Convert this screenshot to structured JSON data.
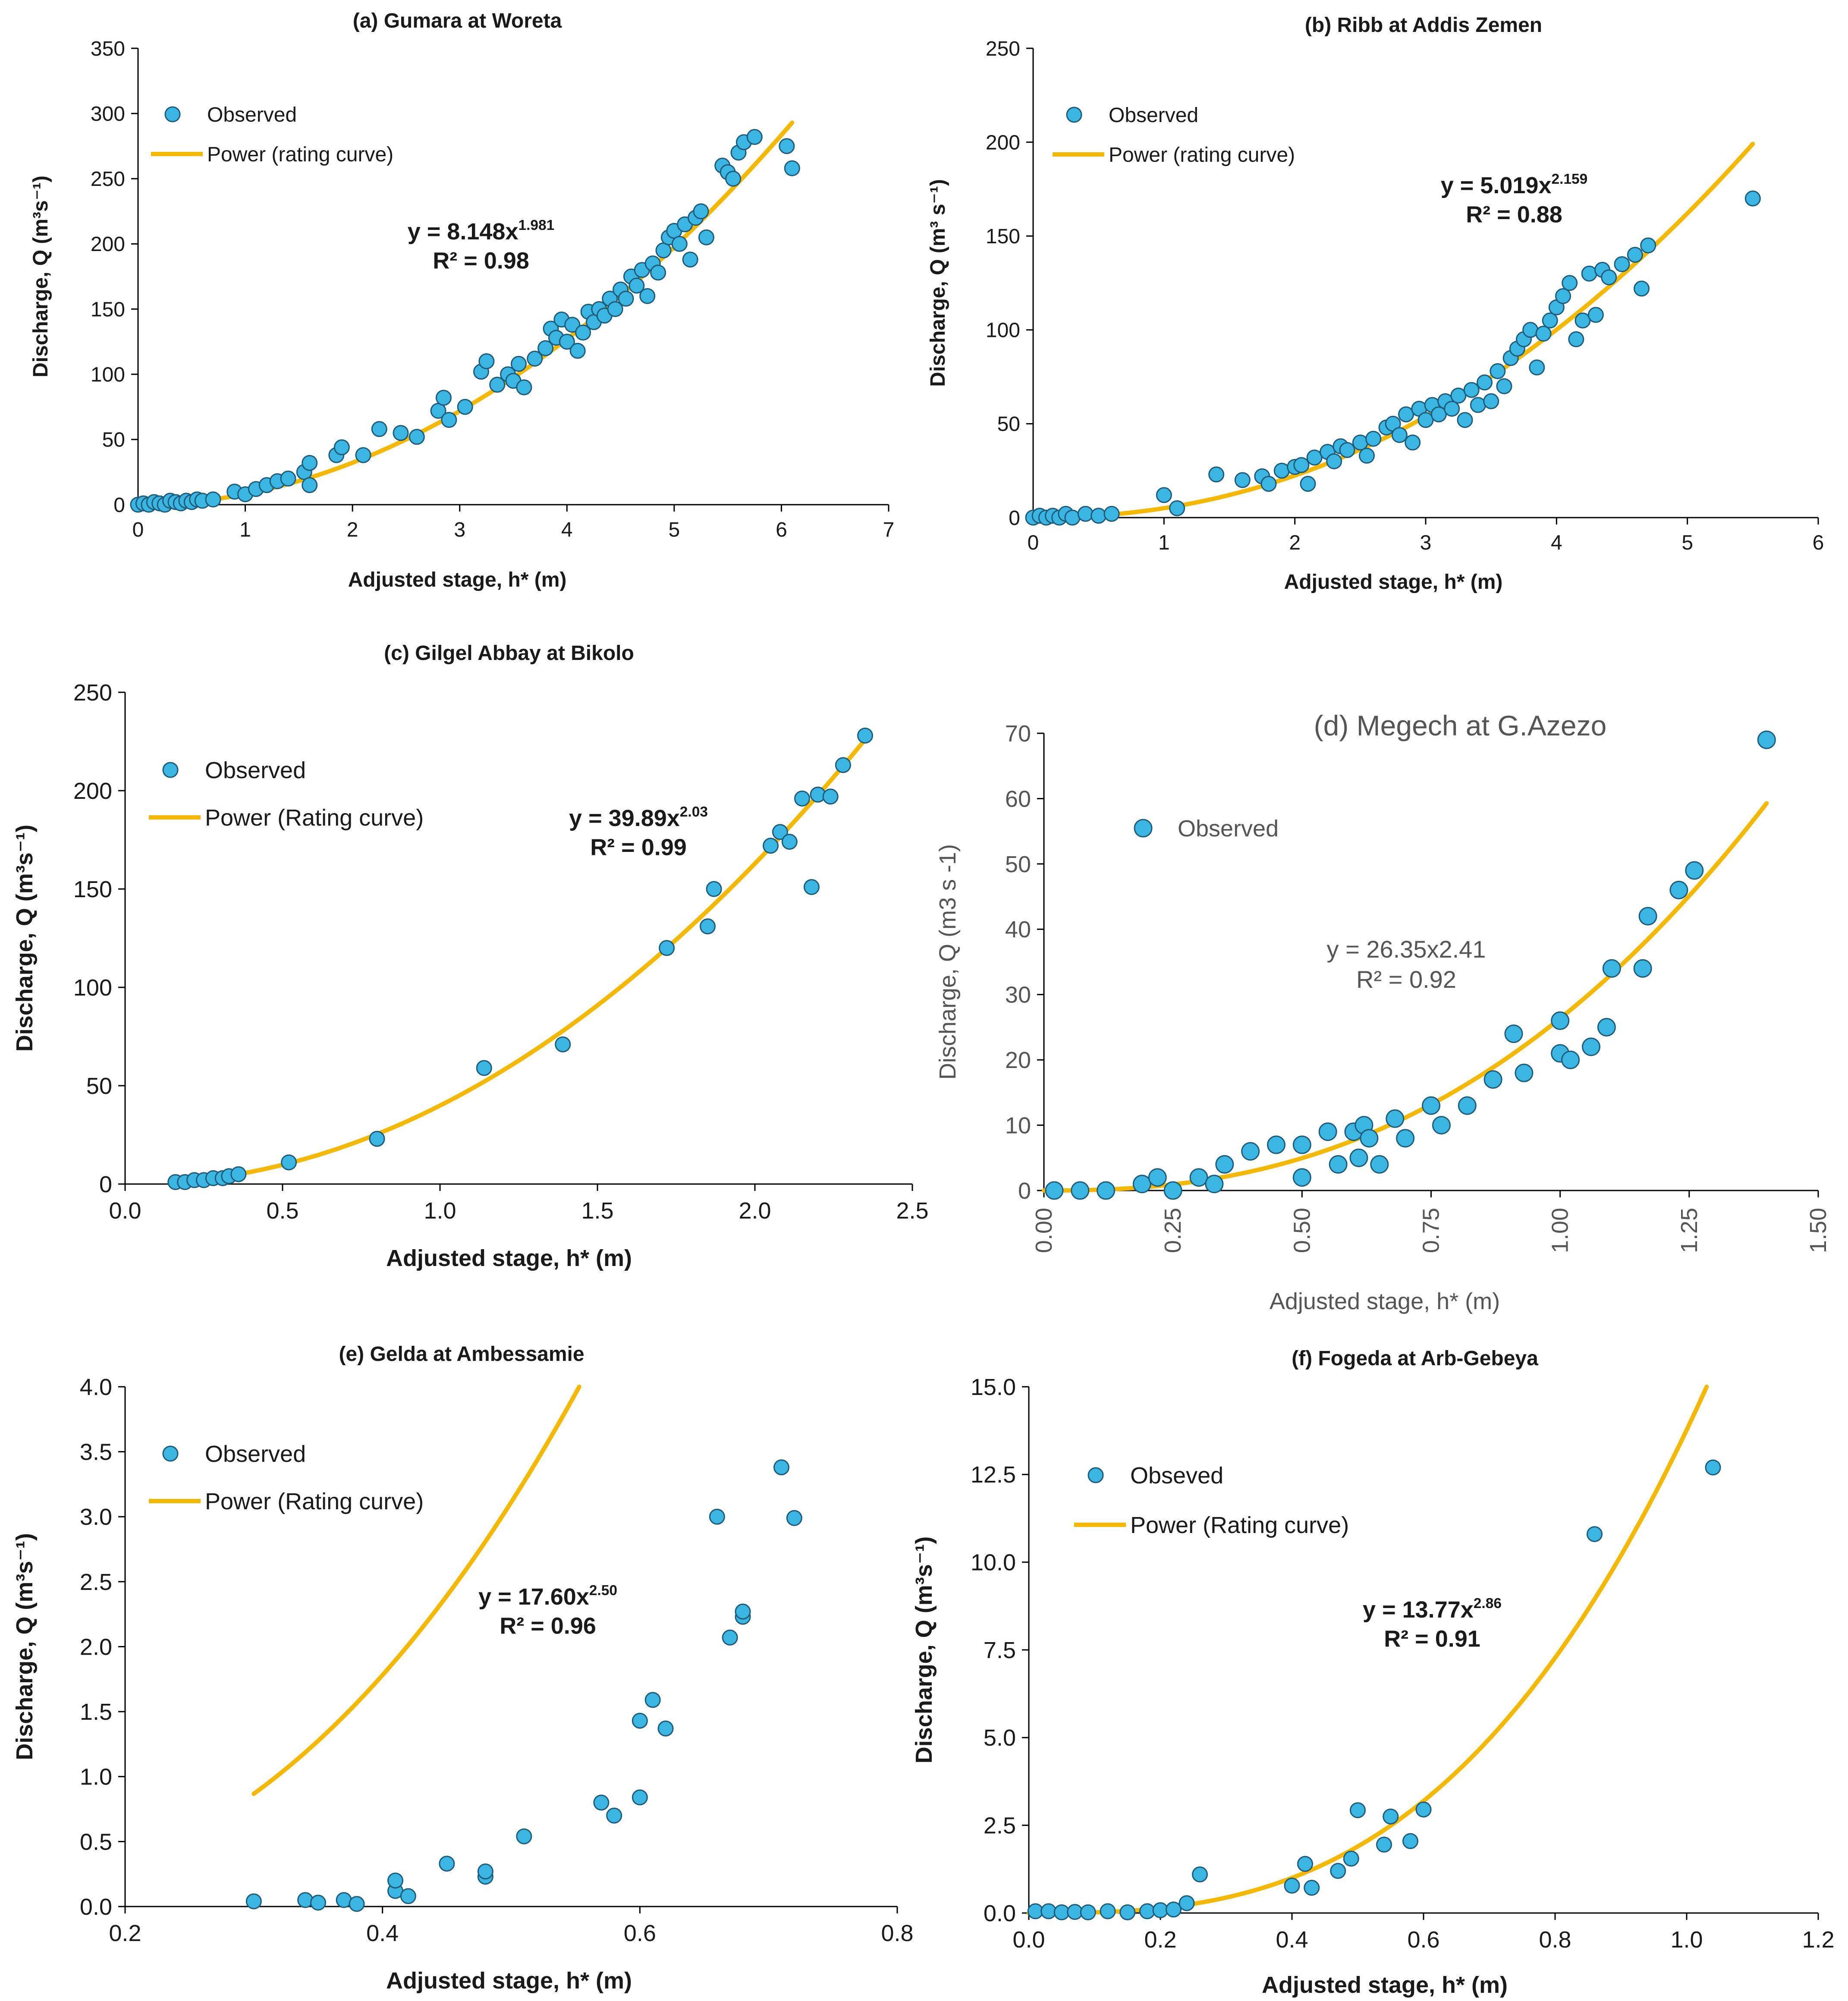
{
  "colors": {
    "observed_fill": "#3bb6e2",
    "observed_stroke": "#1d5b78",
    "curve": "#f5b800",
    "axis": "#000000"
  },
  "chart_data": [
    {
      "id": "a",
      "type": "scatter",
      "title": "(a) Gumara at Woreta",
      "xlabel": "Adjusted stage, h* (m)",
      "ylabel": "Discharge, Q (m³s⁻¹)",
      "xlim": [
        0,
        7
      ],
      "ylim": [
        0,
        350
      ],
      "xticks": [
        "0",
        "1",
        "2",
        "3",
        "4",
        "5",
        "6",
        "7"
      ],
      "yticks": [
        "0",
        "50",
        "100",
        "150",
        "200",
        "250",
        "300",
        "350"
      ],
      "legend": [
        "Observed",
        "Power (rating curve)"
      ],
      "equation": {
        "prefix": "y = 8.148x",
        "exp": "1.981",
        "r2": "R² = 0.98"
      },
      "fit": {
        "a": 8.148,
        "b": 1.981,
        "xmax": 6.1
      },
      "points": [
        [
          0,
          0
        ],
        [
          0.05,
          1
        ],
        [
          0.1,
          0
        ],
        [
          0.15,
          2
        ],
        [
          0.2,
          1
        ],
        [
          0.25,
          0
        ],
        [
          0.3,
          3
        ],
        [
          0.35,
          2
        ],
        [
          0.4,
          1
        ],
        [
          0.45,
          3
        ],
        [
          0.5,
          2
        ],
        [
          0.55,
          4
        ],
        [
          0.6,
          3
        ],
        [
          0.7,
          4
        ],
        [
          0.9,
          10
        ],
        [
          1.0,
          8
        ],
        [
          1.1,
          12
        ],
        [
          1.2,
          15
        ],
        [
          1.3,
          18
        ],
        [
          1.4,
          20
        ],
        [
          1.55,
          25
        ],
        [
          1.6,
          32
        ],
        [
          1.6,
          15
        ],
        [
          1.85,
          38
        ],
        [
          1.9,
          44
        ],
        [
          2.1,
          38
        ],
        [
          2.25,
          58
        ],
        [
          2.45,
          55
        ],
        [
          2.6,
          52
        ],
        [
          2.8,
          72
        ],
        [
          2.85,
          82
        ],
        [
          2.9,
          65
        ],
        [
          3.05,
          75
        ],
        [
          3.2,
          102
        ],
        [
          3.25,
          110
        ],
        [
          3.35,
          92
        ],
        [
          3.45,
          100
        ],
        [
          3.5,
          95
        ],
        [
          3.55,
          108
        ],
        [
          3.6,
          90
        ],
        [
          3.7,
          112
        ],
        [
          3.8,
          120
        ],
        [
          3.85,
          135
        ],
        [
          3.9,
          128
        ],
        [
          3.95,
          142
        ],
        [
          4.0,
          125
        ],
        [
          4.05,
          138
        ],
        [
          4.1,
          118
        ],
        [
          4.15,
          132
        ],
        [
          4.2,
          148
        ],
        [
          4.25,
          140
        ],
        [
          4.3,
          150
        ],
        [
          4.35,
          145
        ],
        [
          4.4,
          158
        ],
        [
          4.45,
          150
        ],
        [
          4.5,
          165
        ],
        [
          4.55,
          158
        ],
        [
          4.6,
          175
        ],
        [
          4.65,
          168
        ],
        [
          4.7,
          180
        ],
        [
          4.75,
          160
        ],
        [
          4.8,
          185
        ],
        [
          4.85,
          178
        ],
        [
          4.9,
          195
        ],
        [
          4.95,
          205
        ],
        [
          5.0,
          210
        ],
        [
          5.05,
          200
        ],
        [
          5.1,
          215
        ],
        [
          5.15,
          188
        ],
        [
          5.2,
          220
        ],
        [
          5.25,
          225
        ],
        [
          5.3,
          205
        ],
        [
          5.45,
          260
        ],
        [
          5.5,
          255
        ],
        [
          5.55,
          250
        ],
        [
          5.6,
          270
        ],
        [
          5.65,
          278
        ],
        [
          5.75,
          282
        ],
        [
          6.05,
          275
        ],
        [
          6.1,
          258
        ]
      ]
    },
    {
      "id": "b",
      "type": "scatter",
      "title": "(b) Ribb at Addis Zemen",
      "xlabel": "Adjusted stage, h* (m)",
      "ylabel": "Discharge, Q (m³ s⁻¹)",
      "xlim": [
        0,
        6
      ],
      "ylim": [
        0,
        250
      ],
      "xticks": [
        "0",
        "1",
        "2",
        "3",
        "4",
        "5",
        "6"
      ],
      "yticks": [
        "0",
        "50",
        "100",
        "150",
        "200",
        "250"
      ],
      "legend": [
        "Observed",
        "Power (rating curve)"
      ],
      "equation": {
        "prefix": "y = 5.019x",
        "exp": "2.159",
        "r2": "R² = 0.88"
      },
      "fit": {
        "a": 5.019,
        "b": 2.159,
        "xmax": 5.5
      },
      "points": [
        [
          0,
          0
        ],
        [
          0.05,
          1
        ],
        [
          0.1,
          0
        ],
        [
          0.15,
          1
        ],
        [
          0.2,
          0
        ],
        [
          0.25,
          2
        ],
        [
          0.3,
          0
        ],
        [
          0.4,
          2
        ],
        [
          0.5,
          1
        ],
        [
          0.6,
          2
        ],
        [
          1.0,
          12
        ],
        [
          1.1,
          5
        ],
        [
          1.4,
          23
        ],
        [
          1.6,
          20
        ],
        [
          1.75,
          22
        ],
        [
          1.8,
          18
        ],
        [
          1.9,
          25
        ],
        [
          2.0,
          27
        ],
        [
          2.05,
          28
        ],
        [
          2.1,
          18
        ],
        [
          2.15,
          32
        ],
        [
          2.25,
          35
        ],
        [
          2.3,
          30
        ],
        [
          2.35,
          38
        ],
        [
          2.4,
          36
        ],
        [
          2.5,
          40
        ],
        [
          2.55,
          33
        ],
        [
          2.6,
          42
        ],
        [
          2.7,
          48
        ],
        [
          2.75,
          50
        ],
        [
          2.8,
          44
        ],
        [
          2.85,
          55
        ],
        [
          2.9,
          40
        ],
        [
          2.95,
          58
        ],
        [
          3.0,
          52
        ],
        [
          3.05,
          60
        ],
        [
          3.1,
          55
        ],
        [
          3.15,
          62
        ],
        [
          3.2,
          58
        ],
        [
          3.25,
          65
        ],
        [
          3.3,
          52
        ],
        [
          3.35,
          68
        ],
        [
          3.4,
          60
        ],
        [
          3.45,
          72
        ],
        [
          3.5,
          62
        ],
        [
          3.55,
          78
        ],
        [
          3.6,
          70
        ],
        [
          3.65,
          85
        ],
        [
          3.7,
          90
        ],
        [
          3.75,
          95
        ],
        [
          3.8,
          100
        ],
        [
          3.85,
          80
        ],
        [
          3.9,
          98
        ],
        [
          3.95,
          105
        ],
        [
          4.0,
          112
        ],
        [
          4.05,
          118
        ],
        [
          4.1,
          125
        ],
        [
          4.15,
          95
        ],
        [
          4.2,
          105
        ],
        [
          4.25,
          130
        ],
        [
          4.3,
          108
        ],
        [
          4.35,
          132
        ],
        [
          4.4,
          128
        ],
        [
          4.5,
          135
        ],
        [
          4.6,
          140
        ],
        [
          4.65,
          122
        ],
        [
          4.7,
          145
        ],
        [
          5.5,
          170
        ]
      ]
    },
    {
      "id": "c",
      "type": "scatter",
      "title": "(c) Gilgel Abbay at Bikolo",
      "xlabel": "Adjusted stage, h* (m)",
      "ylabel": "Discharge, Q (m³s⁻¹)",
      "xlim": [
        0,
        2.5
      ],
      "ylim": [
        0,
        250
      ],
      "xticks": [
        "0.0",
        "0.5",
        "1.0",
        "1.5",
        "2.0",
        "2.5"
      ],
      "yticks": [
        "0",
        "50",
        "100",
        "150",
        "200",
        "250"
      ],
      "legend": [
        "Observed",
        "Power (Rating curve)"
      ],
      "equation": {
        "prefix": "y = 39.89x",
        "exp": "2.03",
        "r2": "R² = 0.99"
      },
      "fit": {
        "a": 39.89,
        "b": 2.03,
        "xmin": 0.15,
        "xmax": 2.35
      },
      "points": [
        [
          0.16,
          1
        ],
        [
          0.19,
          1
        ],
        [
          0.22,
          2
        ],
        [
          0.25,
          2
        ],
        [
          0.28,
          3
        ],
        [
          0.31,
          3
        ],
        [
          0.33,
          4
        ],
        [
          0.36,
          5
        ],
        [
          0.52,
          11
        ],
        [
          0.8,
          23
        ],
        [
          1.14,
          59
        ],
        [
          1.39,
          71
        ],
        [
          1.72,
          120
        ],
        [
          1.85,
          131
        ],
        [
          1.87,
          150
        ],
        [
          2.05,
          172
        ],
        [
          2.08,
          179
        ],
        [
          2.11,
          174
        ],
        [
          2.15,
          196
        ],
        [
          2.18,
          151
        ],
        [
          2.2,
          198
        ],
        [
          2.24,
          197
        ],
        [
          2.28,
          213
        ],
        [
          2.35,
          228
        ]
      ]
    },
    {
      "id": "d",
      "type": "scatter",
      "title": "(d) Megech at G.Azezo",
      "xlabel": "Adjusted stage, h* (m)",
      "ylabel": "Discharge, Q (m3 s -1)",
      "xlim": [
        0,
        1.5
      ],
      "ylim": [
        0,
        70
      ],
      "xticks": [
        "0.00",
        "0.25",
        "0.50",
        "0.75",
        "1.00",
        "1.25",
        "1.50"
      ],
      "yticks": [
        "0",
        "10",
        "20",
        "30",
        "40",
        "50",
        "60",
        "70"
      ],
      "legend": [
        "Observed"
      ],
      "equation": {
        "prefix": "y = 26.35x2.41",
        "exp": "",
        "r2": "R² = 0.92"
      },
      "fit": {
        "a": 26.35,
        "b": 2.41,
        "xmax": 1.4
      },
      "points": [
        [
          0.02,
          0
        ],
        [
          0.07,
          0
        ],
        [
          0.12,
          0
        ],
        [
          0.19,
          1
        ],
        [
          0.22,
          2
        ],
        [
          0.25,
          0
        ],
        [
          0.3,
          2
        ],
        [
          0.33,
          1
        ],
        [
          0.35,
          4
        ],
        [
          0.4,
          6
        ],
        [
          0.45,
          7
        ],
        [
          0.5,
          2
        ],
        [
          0.5,
          7
        ],
        [
          0.55,
          9
        ],
        [
          0.57,
          4
        ],
        [
          0.6,
          9
        ],
        [
          0.61,
          5
        ],
        [
          0.62,
          10
        ],
        [
          0.63,
          8
        ],
        [
          0.65,
          4
        ],
        [
          0.68,
          11
        ],
        [
          0.7,
          8
        ],
        [
          0.75,
          13
        ],
        [
          0.77,
          10
        ],
        [
          0.82,
          13
        ],
        [
          0.87,
          17
        ],
        [
          0.91,
          24
        ],
        [
          0.93,
          18
        ],
        [
          1.0,
          21
        ],
        [
          1.0,
          26
        ],
        [
          1.02,
          20
        ],
        [
          1.06,
          22
        ],
        [
          1.09,
          25
        ],
        [
          1.1,
          34
        ],
        [
          1.16,
          34
        ],
        [
          1.17,
          42
        ],
        [
          1.23,
          46
        ],
        [
          1.26,
          49
        ],
        [
          1.4,
          69
        ]
      ]
    },
    {
      "id": "e",
      "type": "scatter",
      "title": "(e) Gelda at Ambessamie",
      "xlabel": "Adjusted stage, h* (m)",
      "ylabel": "Discharge, Q (m³s⁻¹)",
      "xlim": [
        0.2,
        0.8
      ],
      "ylim": [
        0,
        4
      ],
      "xticks": [
        "0.2",
        "0.4",
        "0.6",
        "0.8"
      ],
      "yticks": [
        "0.0",
        "0.5",
        "1.0",
        "1.5",
        "2.0",
        "2.5",
        "3.0",
        "3.5",
        "4.0"
      ],
      "legend": [
        "Observed",
        "Power (Rating curve)"
      ],
      "equation": {
        "prefix": "y = 17.60x",
        "exp": "2.50",
        "r2": "R² = 0.96"
      },
      "fit": {
        "a": 17.6,
        "b": 2.5,
        "xmin": 0.3,
        "xmax": 0.72
      },
      "points": [
        [
          0.3,
          0.04
        ],
        [
          0.34,
          0.05
        ],
        [
          0.35,
          0.03
        ],
        [
          0.37,
          0.05
        ],
        [
          0.38,
          0.02
        ],
        [
          0.41,
          0.12
        ],
        [
          0.41,
          0.2
        ],
        [
          0.42,
          0.08
        ],
        [
          0.45,
          0.33
        ],
        [
          0.48,
          0.23
        ],
        [
          0.48,
          0.27
        ],
        [
          0.51,
          0.54
        ],
        [
          0.57,
          0.8
        ],
        [
          0.58,
          0.7
        ],
        [
          0.6,
          0.84
        ],
        [
          0.6,
          1.43
        ],
        [
          0.61,
          1.59
        ],
        [
          0.62,
          1.37
        ],
        [
          0.66,
          3.0
        ],
        [
          0.67,
          2.07
        ],
        [
          0.68,
          2.23
        ],
        [
          0.68,
          2.27
        ],
        [
          0.71,
          3.38
        ],
        [
          0.72,
          2.99
        ]
      ]
    },
    {
      "id": "f",
      "type": "scatter",
      "title": "(f) Fogeda at Arb-Gebeya",
      "xlabel": "Adjusted stage, h* (m)",
      "ylabel": "Discharge, Q (m³s⁻¹)",
      "xlim": [
        0,
        1.2
      ],
      "ylim": [
        0,
        15
      ],
      "xticks": [
        "0.0",
        "0.2",
        "0.4",
        "0.6",
        "0.8",
        "1.0",
        "1.2"
      ],
      "yticks": [
        "0.0",
        "2.5",
        "5.0",
        "7.5",
        "10.0",
        "12.5",
        "15.0"
      ],
      "legend": [
        "Obseved",
        "Power (Rating curve)"
      ],
      "equation": {
        "prefix": "y = 13.77x",
        "exp": "2.86",
        "r2": "R² = 0.91"
      },
      "fit": {
        "a": 13.77,
        "b": 2.86,
        "xmax": 1.2
      },
      "points": [
        [
          0.01,
          0.05
        ],
        [
          0.03,
          0.05
        ],
        [
          0.05,
          0.02
        ],
        [
          0.07,
          0.03
        ],
        [
          0.09,
          0.02
        ],
        [
          0.12,
          0.05
        ],
        [
          0.15,
          0.02
        ],
        [
          0.18,
          0.05
        ],
        [
          0.2,
          0.08
        ],
        [
          0.22,
          0.1
        ],
        [
          0.24,
          0.28
        ],
        [
          0.26,
          1.1
        ],
        [
          0.4,
          0.78
        ],
        [
          0.42,
          1.4
        ],
        [
          0.43,
          0.72
        ],
        [
          0.47,
          1.2
        ],
        [
          0.49,
          1.55
        ],
        [
          0.5,
          2.93
        ],
        [
          0.54,
          1.95
        ],
        [
          0.55,
          2.75
        ],
        [
          0.58,
          2.05
        ],
        [
          0.6,
          2.95
        ],
        [
          0.86,
          10.8
        ],
        [
          1.04,
          12.7
        ]
      ]
    }
  ]
}
